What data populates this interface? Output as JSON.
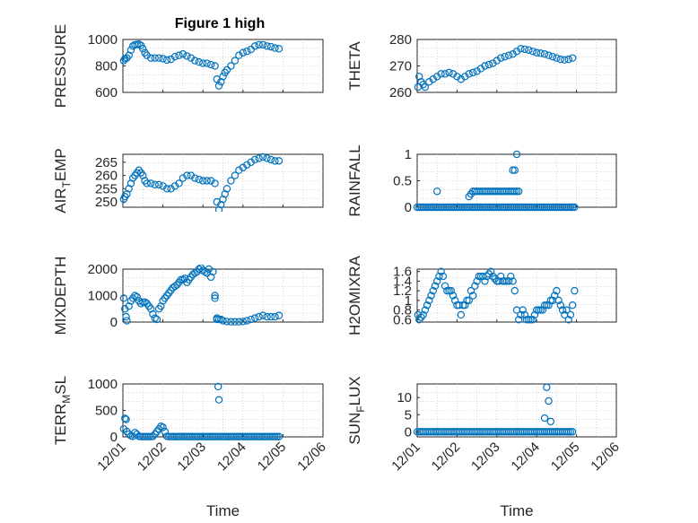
{
  "figure": {
    "title": "Figure 1 high",
    "xlabel_time": "Time"
  },
  "colors": {
    "marker": "#0072BD",
    "axis": "#262626",
    "grid": "#bdbdbd"
  },
  "chart_data": [
    {
      "id": "pressure",
      "type": "scatter",
      "marker": "circle",
      "ylabel": "PRESSURE",
      "ylim": [
        600,
        1000
      ],
      "yticks": [
        "600",
        "800",
        "1000"
      ],
      "xlim": [
        0,
        5
      ],
      "xticks": [
        "12/01",
        "12/02",
        "12/03",
        "12/04",
        "12/05",
        "12/06"
      ],
      "xtick_labels_shown": false,
      "grid": true,
      "x": [
        0.02,
        0.05,
        0.1,
        0.15,
        0.2,
        0.25,
        0.3,
        0.35,
        0.4,
        0.45,
        0.5,
        0.55,
        0.6,
        0.7,
        0.8,
        0.9,
        1.0,
        1.1,
        1.2,
        1.3,
        1.4,
        1.5,
        1.6,
        1.7,
        1.8,
        1.9,
        2.0,
        2.1,
        2.2,
        2.3,
        2.35,
        2.4,
        2.45,
        2.5,
        2.55,
        2.6,
        2.7,
        2.8,
        2.9,
        3.0,
        3.1,
        3.2,
        3.3,
        3.4,
        3.5,
        3.6,
        3.7,
        3.8,
        3.9
      ],
      "y": [
        840,
        855,
        860,
        880,
        920,
        950,
        960,
        962,
        965,
        955,
        930,
        900,
        880,
        860,
        860,
        860,
        855,
        845,
        850,
        870,
        880,
        890,
        875,
        860,
        840,
        830,
        820,
        820,
        810,
        800,
        700,
        650,
        680,
        720,
        750,
        770,
        800,
        840,
        880,
        900,
        910,
        925,
        950,
        960,
        960,
        950,
        945,
        935,
        930
      ]
    },
    {
      "id": "theta",
      "type": "scatter",
      "marker": "circle",
      "ylabel": "THETA",
      "ylim": [
        260,
        280
      ],
      "yticks": [
        "260",
        "270",
        "280"
      ],
      "xlim": [
        0,
        5
      ],
      "xticks": [
        "12/01",
        "12/02",
        "12/03",
        "12/04",
        "12/05",
        "12/06"
      ],
      "xtick_labels_shown": false,
      "grid": true,
      "x": [
        0.02,
        0.05,
        0.1,
        0.15,
        0.2,
        0.3,
        0.4,
        0.5,
        0.6,
        0.7,
        0.8,
        0.9,
        1.0,
        1.1,
        1.2,
        1.3,
        1.4,
        1.5,
        1.6,
        1.7,
        1.8,
        1.9,
        2.0,
        2.1,
        2.2,
        2.3,
        2.4,
        2.5,
        2.6,
        2.7,
        2.8,
        2.9,
        3.0,
        3.1,
        3.2,
        3.3,
        3.4,
        3.5,
        3.6,
        3.7,
        3.8,
        3.9
      ],
      "y": [
        262,
        266,
        264,
        263,
        262,
        264,
        265,
        266,
        267,
        267,
        267.5,
        267,
        266,
        265,
        266,
        267,
        267.5,
        268,
        269,
        270,
        270.5,
        271,
        272,
        273,
        273.5,
        274,
        274.5,
        275.5,
        276.5,
        276.3,
        276,
        275.5,
        275,
        274.8,
        274.5,
        274,
        273.5,
        273,
        272.5,
        272.3,
        272.5,
        273
      ]
    },
    {
      "id": "air_temp",
      "type": "scatter",
      "marker": "circle",
      "ylabel": "AIR",
      "ylabel_sub": "T",
      "ylabel_suffix": "EMP",
      "ylim": [
        248,
        268
      ],
      "yticks": [
        "250",
        "255",
        "260",
        "265"
      ],
      "xlim": [
        0,
        5
      ],
      "xticks": [
        "12/01",
        "12/02",
        "12/03",
        "12/04",
        "12/05",
        "12/06"
      ],
      "xtick_labels_shown": false,
      "grid": true,
      "x": [
        0.02,
        0.05,
        0.1,
        0.15,
        0.2,
        0.25,
        0.3,
        0.35,
        0.4,
        0.45,
        0.5,
        0.55,
        0.6,
        0.7,
        0.8,
        0.9,
        1.0,
        1.1,
        1.2,
        1.3,
        1.4,
        1.5,
        1.6,
        1.7,
        1.8,
        1.9,
        2.0,
        2.1,
        2.2,
        2.3,
        2.35,
        2.4,
        2.45,
        2.5,
        2.55,
        2.6,
        2.7,
        2.8,
        2.9,
        3.0,
        3.1,
        3.2,
        3.3,
        3.4,
        3.5,
        3.6,
        3.7,
        3.8,
        3.9
      ],
      "y": [
        251,
        252,
        253,
        255,
        257,
        259,
        260,
        261,
        262,
        261,
        260,
        258,
        257,
        257,
        256.5,
        256.5,
        256,
        255,
        255,
        256,
        257,
        259,
        260,
        260,
        259,
        258.5,
        258,
        258,
        258,
        257,
        250,
        247,
        249,
        251,
        253,
        255,
        258,
        260,
        262,
        263,
        264,
        265,
        266,
        266.5,
        267,
        266.5,
        266,
        265.5,
        265.5
      ]
    },
    {
      "id": "rainfall",
      "type": "scatter",
      "marker": "circle",
      "ylabel": "RAINFALL",
      "ylim": [
        0,
        1
      ],
      "yticks": [
        "0",
        "0.5",
        "1"
      ],
      "xlim": [
        0,
        5
      ],
      "xticks": [
        "12/01",
        "12/02",
        "12/03",
        "12/04",
        "12/05",
        "12/06"
      ],
      "xtick_labels_shown": false,
      "grid": true,
      "x": [
        0.0,
        0.05,
        0.1,
        0.15,
        0.2,
        0.25,
        0.3,
        0.35,
        0.4,
        0.45,
        0.5,
        0.55,
        0.6,
        0.65,
        0.7,
        0.75,
        0.8,
        0.85,
        0.9,
        0.95,
        1.0,
        1.05,
        1.1,
        1.15,
        1.2,
        1.25,
        1.3,
        1.35,
        1.4,
        1.45,
        1.5,
        1.55,
        1.6,
        1.65,
        1.7,
        1.75,
        1.8,
        1.85,
        1.9,
        1.95,
        2.0,
        2.05,
        2.1,
        2.15,
        2.2,
        2.25,
        2.3,
        2.35,
        2.4,
        2.45,
        2.5,
        2.55,
        2.6,
        2.65,
        2.7,
        2.75,
        2.8,
        2.85,
        2.9,
        2.95,
        3.0,
        3.05,
        3.1,
        3.15,
        3.2,
        3.25,
        3.3,
        3.35,
        3.4,
        3.45,
        3.5,
        3.55,
        3.6,
        3.65,
        3.7,
        3.75,
        3.8,
        3.85,
        3.9,
        3.95,
        0.5,
        1.3,
        1.35,
        1.4,
        1.45,
        1.5,
        1.55,
        1.6,
        1.65,
        1.7,
        1.75,
        1.8,
        1.85,
        1.9,
        1.95,
        2.0,
        2.05,
        2.1,
        2.15,
        2.2,
        2.25,
        2.3,
        2.35,
        2.4,
        2.45,
        2.5,
        2.55,
        2.4,
        2.45,
        2.5
      ],
      "y": [
        0,
        0,
        0,
        0,
        0,
        0,
        0,
        0,
        0,
        0,
        0,
        0,
        0,
        0,
        0,
        0,
        0,
        0,
        0,
        0,
        0,
        0,
        0,
        0,
        0,
        0,
        0,
        0,
        0,
        0,
        0,
        0,
        0,
        0,
        0,
        0,
        0,
        0,
        0,
        0,
        0,
        0,
        0,
        0,
        0,
        0,
        0,
        0,
        0,
        0,
        0,
        0,
        0,
        0,
        0,
        0,
        0,
        0,
        0,
        0,
        0,
        0,
        0,
        0,
        0,
        0,
        0,
        0,
        0,
        0,
        0,
        0,
        0,
        0,
        0,
        0,
        0,
        0,
        0,
        0,
        0.3,
        0.2,
        0.25,
        0.3,
        0.3,
        0.3,
        0.3,
        0.3,
        0.3,
        0.3,
        0.3,
        0.3,
        0.3,
        0.3,
        0.3,
        0.3,
        0.3,
        0.3,
        0.3,
        0.3,
        0.3,
        0.3,
        0.3,
        0.3,
        0.3,
        0.3,
        0.3,
        0.7,
        0.7,
        1.0
      ]
    },
    {
      "id": "mixdepth",
      "type": "scatter",
      "marker": "circle",
      "ylabel": "MIXDEPTH",
      "ylim": [
        0,
        2000
      ],
      "yticks": [
        "0",
        "1000",
        "2000"
      ],
      "xlim": [
        0,
        5
      ],
      "xticks": [
        "12/01",
        "12/02",
        "12/03",
        "12/04",
        "12/05",
        "12/06"
      ],
      "xtick_labels_shown": false,
      "grid": true,
      "x": [
        0.02,
        0.05,
        0.08,
        0.1,
        0.15,
        0.2,
        0.25,
        0.3,
        0.35,
        0.4,
        0.45,
        0.5,
        0.55,
        0.6,
        0.65,
        0.7,
        0.75,
        0.8,
        0.85,
        0.9,
        0.95,
        1.0,
        1.05,
        1.1,
        1.15,
        1.2,
        1.25,
        1.3,
        1.35,
        1.4,
        1.45,
        1.5,
        1.55,
        1.6,
        1.65,
        1.7,
        1.75,
        1.8,
        1.85,
        1.9,
        1.95,
        2.0,
        2.05,
        2.1,
        2.15,
        2.2,
        2.25,
        2.3,
        2.35,
        2.4,
        2.45,
        2.5,
        2.6,
        2.7,
        2.8,
        2.9,
        3.0,
        3.1,
        3.2,
        3.3,
        3.4,
        3.5,
        3.6,
        3.7,
        3.8,
        3.9,
        2.35,
        2.3
      ],
      "y": [
        900,
        500,
        200,
        50,
        600,
        800,
        900,
        1000,
        950,
        800,
        700,
        750,
        750,
        700,
        600,
        500,
        300,
        150,
        100,
        500,
        600,
        800,
        900,
        1000,
        1100,
        1200,
        1300,
        1350,
        1400,
        1500,
        1600,
        1600,
        1650,
        1500,
        1600,
        1700,
        1800,
        1850,
        1900,
        2000,
        2050,
        1950,
        1900,
        1850,
        2000,
        1700,
        1900,
        1000,
        150,
        100,
        100,
        50,
        20,
        10,
        10,
        10,
        20,
        50,
        100,
        150,
        200,
        250,
        200,
        200,
        200,
        250,
        100,
        900
      ]
    },
    {
      "id": "h2omixra",
      "type": "scatter",
      "marker": "circle",
      "ylabel": "H2OMIXRA",
      "ylim": [
        0.55,
        1.65
      ],
      "yticks": [
        "0.6",
        "0.8",
        "1",
        "1.2",
        "1.4",
        "1.6"
      ],
      "xlim": [
        0,
        5
      ],
      "xticks": [
        "12/01",
        "12/02",
        "12/03",
        "12/04",
        "12/05",
        "12/06"
      ],
      "xtick_labels_shown": false,
      "grid": true,
      "x": [
        0.02,
        0.05,
        0.1,
        0.15,
        0.2,
        0.25,
        0.3,
        0.35,
        0.4,
        0.45,
        0.5,
        0.55,
        0.6,
        0.65,
        0.7,
        0.75,
        0.8,
        0.85,
        0.9,
        0.95,
        1.0,
        1.05,
        1.1,
        1.15,
        1.2,
        1.25,
        1.3,
        1.35,
        1.4,
        1.45,
        1.5,
        1.55,
        1.6,
        1.65,
        1.7,
        1.75,
        1.8,
        1.85,
        1.9,
        1.95,
        2.0,
        2.05,
        2.1,
        2.15,
        2.2,
        2.25,
        2.3,
        2.35,
        2.4,
        2.45,
        2.5,
        2.55,
        2.6,
        2.65,
        2.7,
        2.75,
        2.8,
        2.85,
        2.9,
        2.95,
        3.0,
        3.05,
        3.1,
        3.15,
        3.2,
        3.25,
        3.3,
        3.35,
        3.4,
        3.45,
        3.5,
        3.55,
        3.6,
        3.65,
        3.7,
        3.75,
        3.8,
        3.85,
        3.9,
        3.95
      ],
      "y": [
        0.7,
        0.6,
        0.65,
        0.7,
        0.8,
        0.9,
        1.0,
        1.1,
        1.2,
        1.3,
        1.4,
        1.5,
        1.6,
        1.5,
        1.3,
        1.2,
        1.2,
        1.2,
        1.1,
        1.0,
        0.9,
        0.9,
        0.7,
        0.9,
        0.9,
        1.0,
        1.0,
        1.2,
        1.1,
        1.3,
        1.4,
        1.5,
        1.5,
        1.5,
        1.4,
        1.5,
        1.55,
        1.6,
        1.5,
        1.45,
        1.4,
        1.4,
        1.5,
        1.4,
        1.4,
        1.4,
        1.4,
        1.5,
        1.4,
        1.2,
        0.8,
        0.6,
        0.7,
        0.8,
        0.7,
        0.6,
        0.6,
        0.6,
        0.6,
        0.7,
        0.8,
        0.8,
        0.8,
        0.8,
        0.9,
        0.9,
        0.9,
        1.0,
        1.0,
        1.1,
        1.2,
        1.0,
        0.9,
        0.8,
        0.7,
        0.8,
        0.6,
        0.7,
        0.9,
        1.2
      ]
    },
    {
      "id": "terr_msl",
      "type": "scatter",
      "marker": "circle",
      "ylabel": "TERR",
      "ylabel_sub": "M",
      "ylabel_suffix": "SL",
      "ylim": [
        0,
        1000
      ],
      "yticks": [
        "0",
        "500",
        "1000"
      ],
      "xlim": [
        0,
        5
      ],
      "xticks": [
        "12/01",
        "12/02",
        "12/03",
        "12/04",
        "12/05",
        "12/06"
      ],
      "xtick_labels_shown": true,
      "xlabel": "Time",
      "grid": true,
      "x": [
        0.02,
        0.05,
        0.08,
        0.1,
        0.15,
        0.2,
        0.25,
        0.3,
        0.35,
        0.4,
        0.45,
        0.5,
        0.55,
        0.6,
        0.65,
        0.7,
        0.75,
        0.8,
        0.85,
        0.9,
        0.95,
        1.0,
        1.05,
        1.1,
        1.15,
        1.2,
        1.25,
        1.3,
        1.35,
        1.4,
        1.45,
        1.5,
        1.55,
        1.6,
        1.65,
        1.7,
        1.75,
        1.8,
        1.85,
        1.9,
        1.95,
        2.0,
        2.05,
        2.1,
        2.15,
        2.2,
        2.25,
        2.3,
        2.35,
        2.4,
        2.45,
        2.5,
        2.55,
        2.6,
        2.65,
        2.7,
        2.75,
        2.8,
        2.85,
        2.9,
        2.95,
        3.0,
        3.05,
        3.1,
        3.15,
        3.2,
        3.25,
        3.3,
        3.35,
        3.4,
        3.45,
        3.5,
        3.55,
        3.6,
        3.65,
        3.7,
        3.75,
        3.8,
        3.85,
        3.9,
        2.38,
        2.4
      ],
      "y": [
        150,
        350,
        330,
        100,
        50,
        20,
        10,
        80,
        50,
        10,
        5,
        5,
        5,
        5,
        5,
        5,
        10,
        50,
        100,
        150,
        200,
        180,
        100,
        10,
        5,
        5,
        5,
        5,
        5,
        5,
        5,
        5,
        5,
        5,
        5,
        5,
        5,
        5,
        5,
        5,
        5,
        5,
        5,
        5,
        5,
        5,
        5,
        5,
        5,
        5,
        5,
        5,
        5,
        5,
        5,
        5,
        5,
        5,
        5,
        5,
        5,
        5,
        5,
        5,
        5,
        5,
        5,
        5,
        5,
        5,
        5,
        5,
        5,
        5,
        5,
        5,
        5,
        5,
        5,
        5,
        950,
        700
      ]
    },
    {
      "id": "sun_flux",
      "type": "scatter",
      "marker": "circle",
      "ylabel": "SUN",
      "ylabel_sub": "F",
      "ylabel_suffix": "LUX",
      "ylim": [
        -1.5,
        14
      ],
      "yticks": [
        "0",
        "5",
        "10"
      ],
      "xlim": [
        0,
        5
      ],
      "xticks": [
        "12/01",
        "12/02",
        "12/03",
        "12/04",
        "12/05",
        "12/06"
      ],
      "xtick_labels_shown": true,
      "xlabel": "Time",
      "grid": true,
      "x": [
        0.0,
        0.05,
        0.1,
        0.15,
        0.2,
        0.25,
        0.3,
        0.35,
        0.4,
        0.45,
        0.5,
        0.55,
        0.6,
        0.65,
        0.7,
        0.75,
        0.8,
        0.85,
        0.9,
        0.95,
        1.0,
        1.05,
        1.1,
        1.15,
        1.2,
        1.25,
        1.3,
        1.35,
        1.4,
        1.45,
        1.5,
        1.55,
        1.6,
        1.65,
        1.7,
        1.75,
        1.8,
        1.85,
        1.9,
        1.95,
        2.0,
        2.05,
        2.1,
        2.15,
        2.2,
        2.25,
        2.3,
        2.35,
        2.4,
        2.45,
        2.5,
        2.55,
        2.6,
        2.65,
        2.7,
        2.75,
        2.8,
        2.85,
        2.9,
        2.95,
        3.0,
        3.05,
        3.1,
        3.15,
        3.2,
        3.25,
        3.3,
        3.35,
        3.4,
        3.45,
        3.5,
        3.55,
        3.6,
        3.65,
        3.7,
        3.75,
        3.8,
        3.85,
        3.9,
        3.2,
        3.25,
        3.3,
        3.35
      ],
      "y": [
        0,
        0,
        0,
        0,
        0,
        0,
        0,
        0,
        0,
        0,
        0,
        0,
        0,
        0,
        0,
        0,
        0,
        0,
        0,
        0,
        0,
        0,
        0,
        0,
        0,
        0,
        0,
        0,
        0,
        0,
        0,
        0,
        0,
        0,
        0,
        0,
        0,
        0,
        0,
        0,
        0,
        0,
        0,
        0,
        0,
        0,
        0,
        0,
        0,
        0,
        0,
        0,
        0,
        0,
        0,
        0,
        0,
        0,
        0,
        0,
        0,
        0,
        0,
        0,
        0,
        0,
        0,
        0,
        0,
        0,
        0,
        0,
        0,
        0,
        0,
        0,
        0,
        0,
        0,
        4,
        13,
        9,
        3
      ]
    }
  ]
}
